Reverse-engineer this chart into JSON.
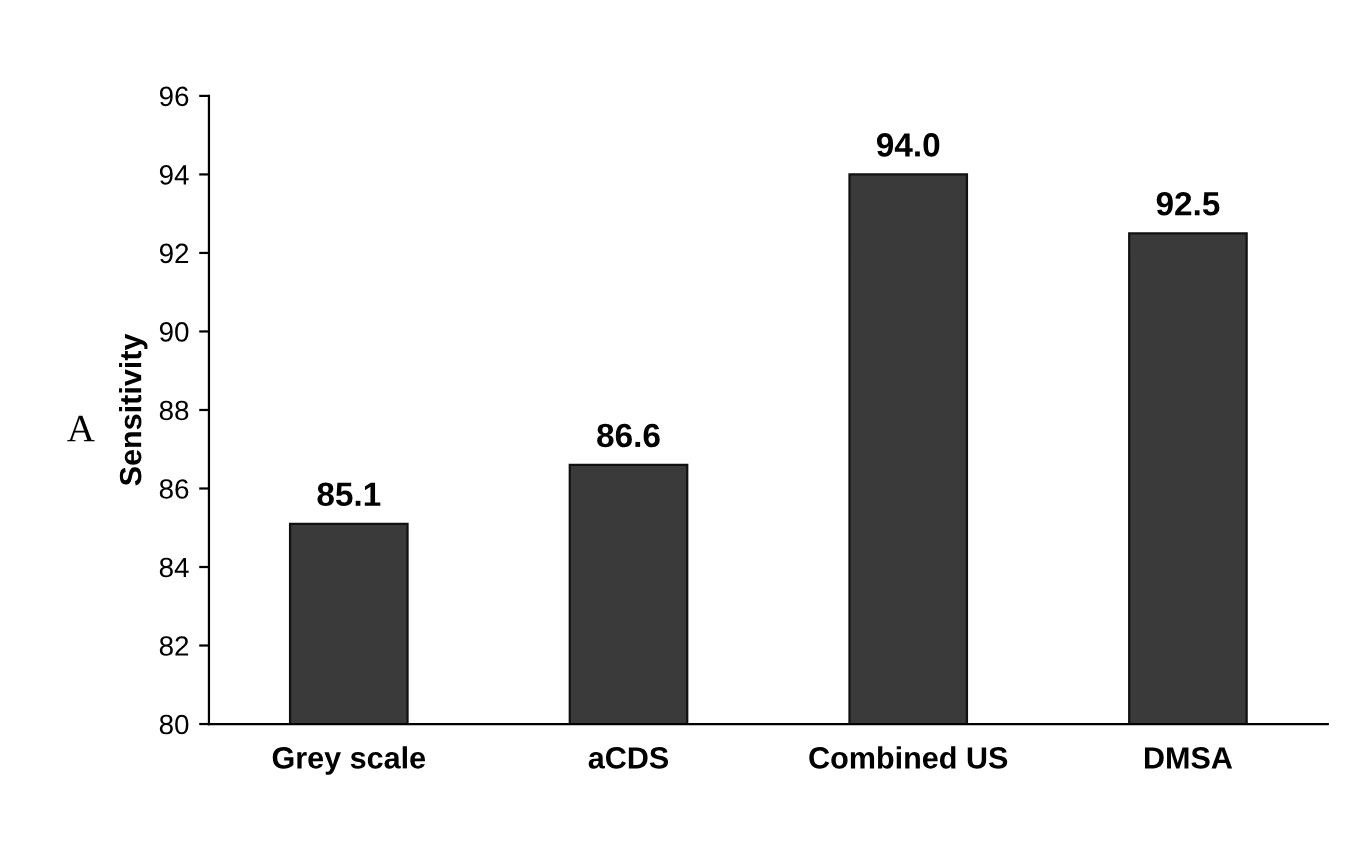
{
  "chart_data": {
    "type": "bar",
    "ylabel": "Sensitivity",
    "categories": [
      "Grey scale",
      "aCDS",
      "Combined US",
      "DMSA"
    ],
    "values": [
      85.1,
      86.6,
      94.0,
      92.5
    ],
    "value_labels": [
      "85.1",
      "86.6",
      "94.0",
      "92.5"
    ],
    "color": "#3a3a3a",
    "ylim": [
      80,
      96
    ],
    "yticks": [
      80,
      82,
      84,
      86,
      88,
      90,
      92,
      94,
      96
    ],
    "grid": false,
    "legend": false,
    "annotations": [
      "A"
    ]
  }
}
